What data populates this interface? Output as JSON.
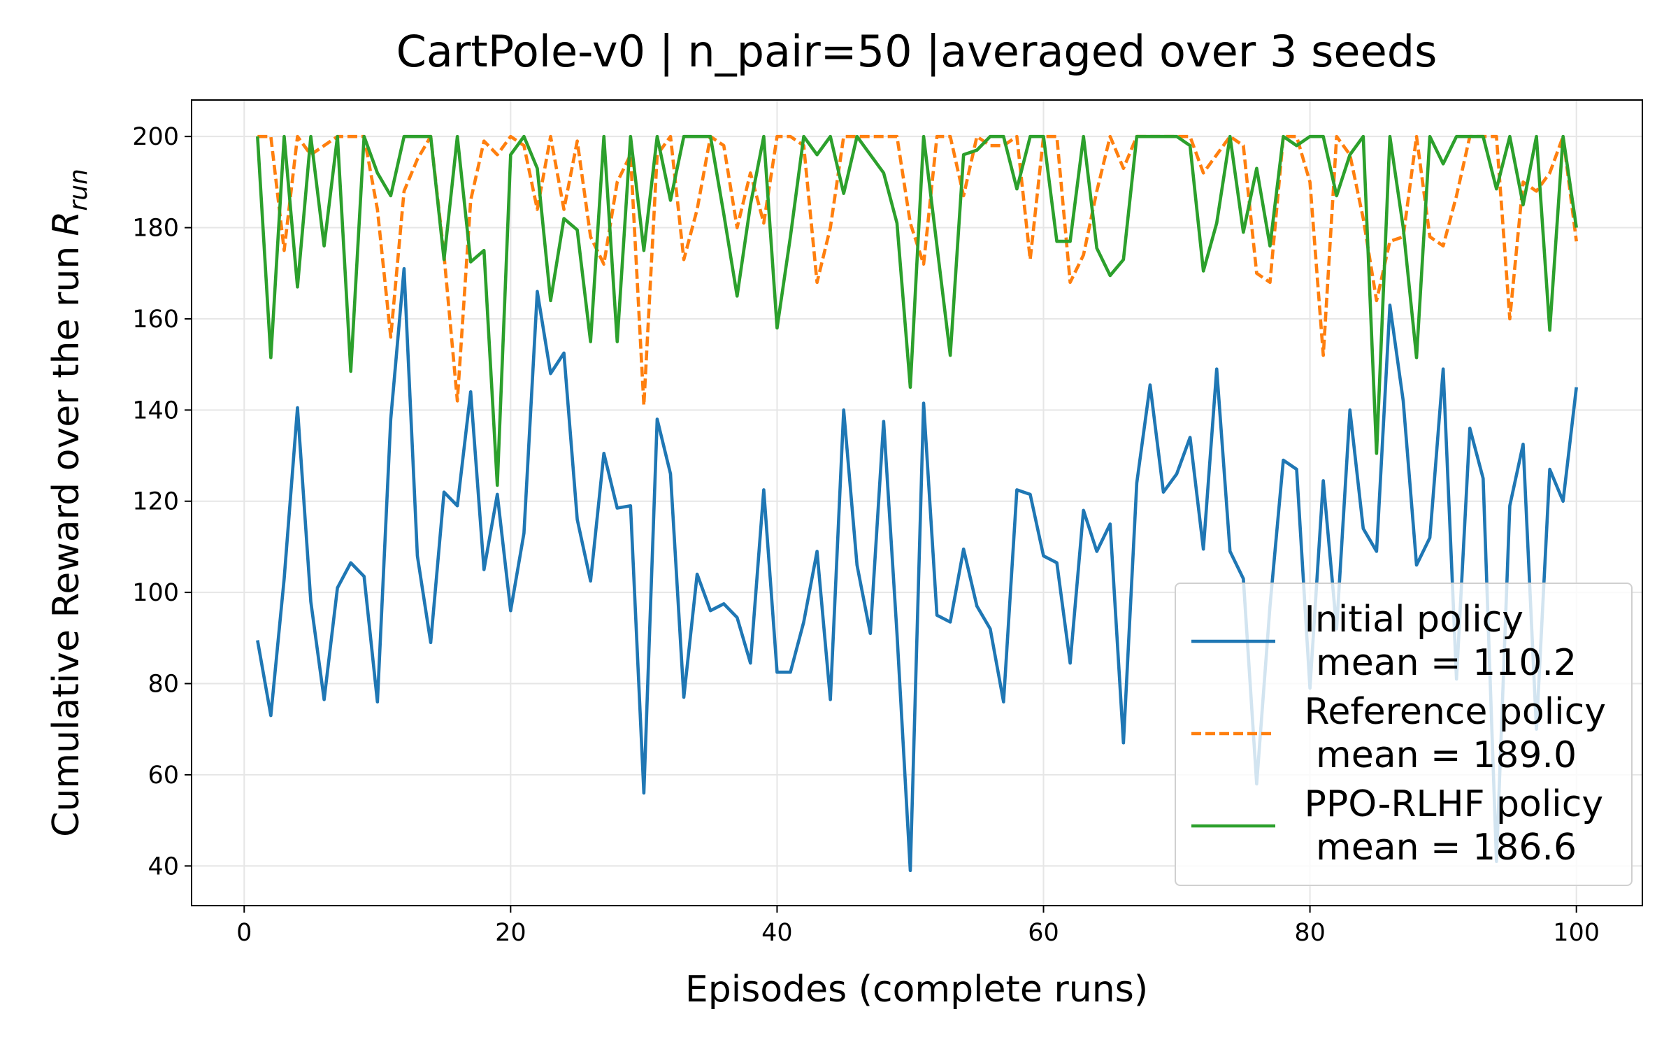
{
  "chart_data": {
    "type": "line",
    "title": "CartPole-v0 | n_pair=50 |averaged over 3 seeds",
    "xlabel": "Episodes (complete runs)",
    "ylabel": "Cumulative Reward over the run",
    "ylabel_symbol": "R",
    "ylabel_subscript": "run",
    "x": [
      1,
      2,
      3,
      4,
      5,
      6,
      7,
      8,
      9,
      10,
      11,
      12,
      13,
      14,
      15,
      16,
      17,
      18,
      19,
      20,
      21,
      22,
      23,
      24,
      25,
      26,
      27,
      28,
      29,
      30,
      31,
      32,
      33,
      34,
      35,
      36,
      37,
      38,
      39,
      40,
      41,
      42,
      43,
      44,
      45,
      46,
      47,
      48,
      49,
      50,
      51,
      52,
      53,
      54,
      55,
      56,
      57,
      58,
      59,
      60,
      61,
      62,
      63,
      64,
      65,
      66,
      67,
      68,
      69,
      70,
      71,
      72,
      73,
      74,
      75,
      76,
      77,
      78,
      79,
      80,
      81,
      82,
      83,
      84,
      85,
      86,
      87,
      88,
      89,
      90,
      91,
      92,
      93,
      94,
      95,
      96,
      97,
      98,
      99,
      100
    ],
    "series": [
      {
        "name": "Initial policy\n mean = 110.2",
        "color": "#1f77b4",
        "dash": false,
        "values": [
          89.5,
          73,
          103,
          140.5,
          98,
          76.5,
          101,
          106.5,
          103.5,
          76,
          138,
          171,
          108,
          89,
          122,
          119,
          144,
          105,
          121.5,
          96,
          113,
          166,
          148,
          152.5,
          116,
          102.5,
          130.5,
          118.5,
          119,
          56,
          138,
          126,
          77,
          104,
          96,
          97.5,
          94.5,
          84.5,
          122.5,
          82.5,
          82.5,
          93.5,
          109,
          76.5,
          140,
          106,
          91,
          137.5,
          91,
          39,
          141.5,
          95,
          93.5,
          109.5,
          97,
          92,
          76,
          122.5,
          121.5,
          108,
          106.5,
          84.5,
          118,
          109,
          115,
          67,
          124,
          145.5,
          122,
          126,
          134,
          109.5,
          149,
          109,
          103,
          58,
          97,
          129,
          127,
          79,
          124.5,
          92,
          140,
          114,
          109,
          163,
          142,
          106,
          112,
          149,
          81,
          136,
          125,
          41,
          119,
          132.5,
          70,
          127,
          120,
          145
        ]
      },
      {
        "name": "Reference policy\n mean = 189.0",
        "color": "#ff7f0e",
        "dash": true,
        "values": [
          200,
          200,
          175,
          200,
          196,
          198,
          200,
          200,
          200,
          184,
          156,
          188,
          195,
          200,
          174,
          142,
          186,
          199,
          196,
          200,
          198,
          184,
          200,
          184,
          199,
          178,
          172,
          190,
          196,
          141,
          196,
          200,
          173,
          184,
          200,
          198,
          180,
          192,
          181,
          200,
          200,
          198,
          168,
          180,
          200,
          200,
          200,
          200,
          200,
          181,
          172,
          200,
          200,
          187,
          200,
          198,
          198,
          200,
          173,
          200,
          200,
          168,
          174,
          188,
          200,
          193,
          200,
          200,
          200,
          200,
          200,
          192,
          196,
          200,
          198,
          170,
          168,
          200,
          200,
          190,
          152,
          200,
          196,
          182,
          164,
          177,
          178,
          200,
          178,
          176,
          187,
          200,
          200,
          200,
          160,
          190,
          188,
          192,
          200,
          177
        ]
      },
      {
        "name": "PPO-RLHF policy\n mean = 186.6",
        "color": "#2ca02c",
        "dash": false,
        "values": [
          200,
          151.5,
          200,
          167,
          200,
          176,
          200,
          148.5,
          200,
          192,
          187,
          200,
          200,
          200,
          173,
          200,
          172.5,
          175,
          123.5,
          196,
          200,
          193,
          164,
          182,
          179.5,
          155,
          200,
          155,
          200,
          175,
          200,
          186,
          200,
          200,
          200,
          183,
          165,
          185,
          200,
          158,
          178,
          200,
          196,
          200,
          187.5,
          200,
          196,
          192,
          181,
          145,
          200,
          176,
          152,
          196,
          197,
          200,
          200,
          188.5,
          200,
          200,
          177,
          177,
          200,
          175.5,
          169.5,
          173,
          200,
          200,
          200,
          200,
          198,
          170.5,
          181,
          200,
          179,
          193,
          176,
          200,
          198,
          200,
          200,
          187,
          196,
          200,
          130.5,
          200,
          180,
          151.5,
          200,
          194,
          200,
          200,
          200,
          188.5,
          200,
          185,
          200,
          157.5,
          200,
          180
        ]
      }
    ],
    "xlim": [
      -3.95,
      104.95
    ],
    "xticks": [
      0,
      20,
      40,
      60,
      80,
      100
    ],
    "ylim": [
      31.3,
      208.0
    ],
    "yticks": [
      40,
      60,
      80,
      100,
      120,
      140,
      160,
      180,
      200
    ],
    "grid": true,
    "legend": "lower right"
  }
}
